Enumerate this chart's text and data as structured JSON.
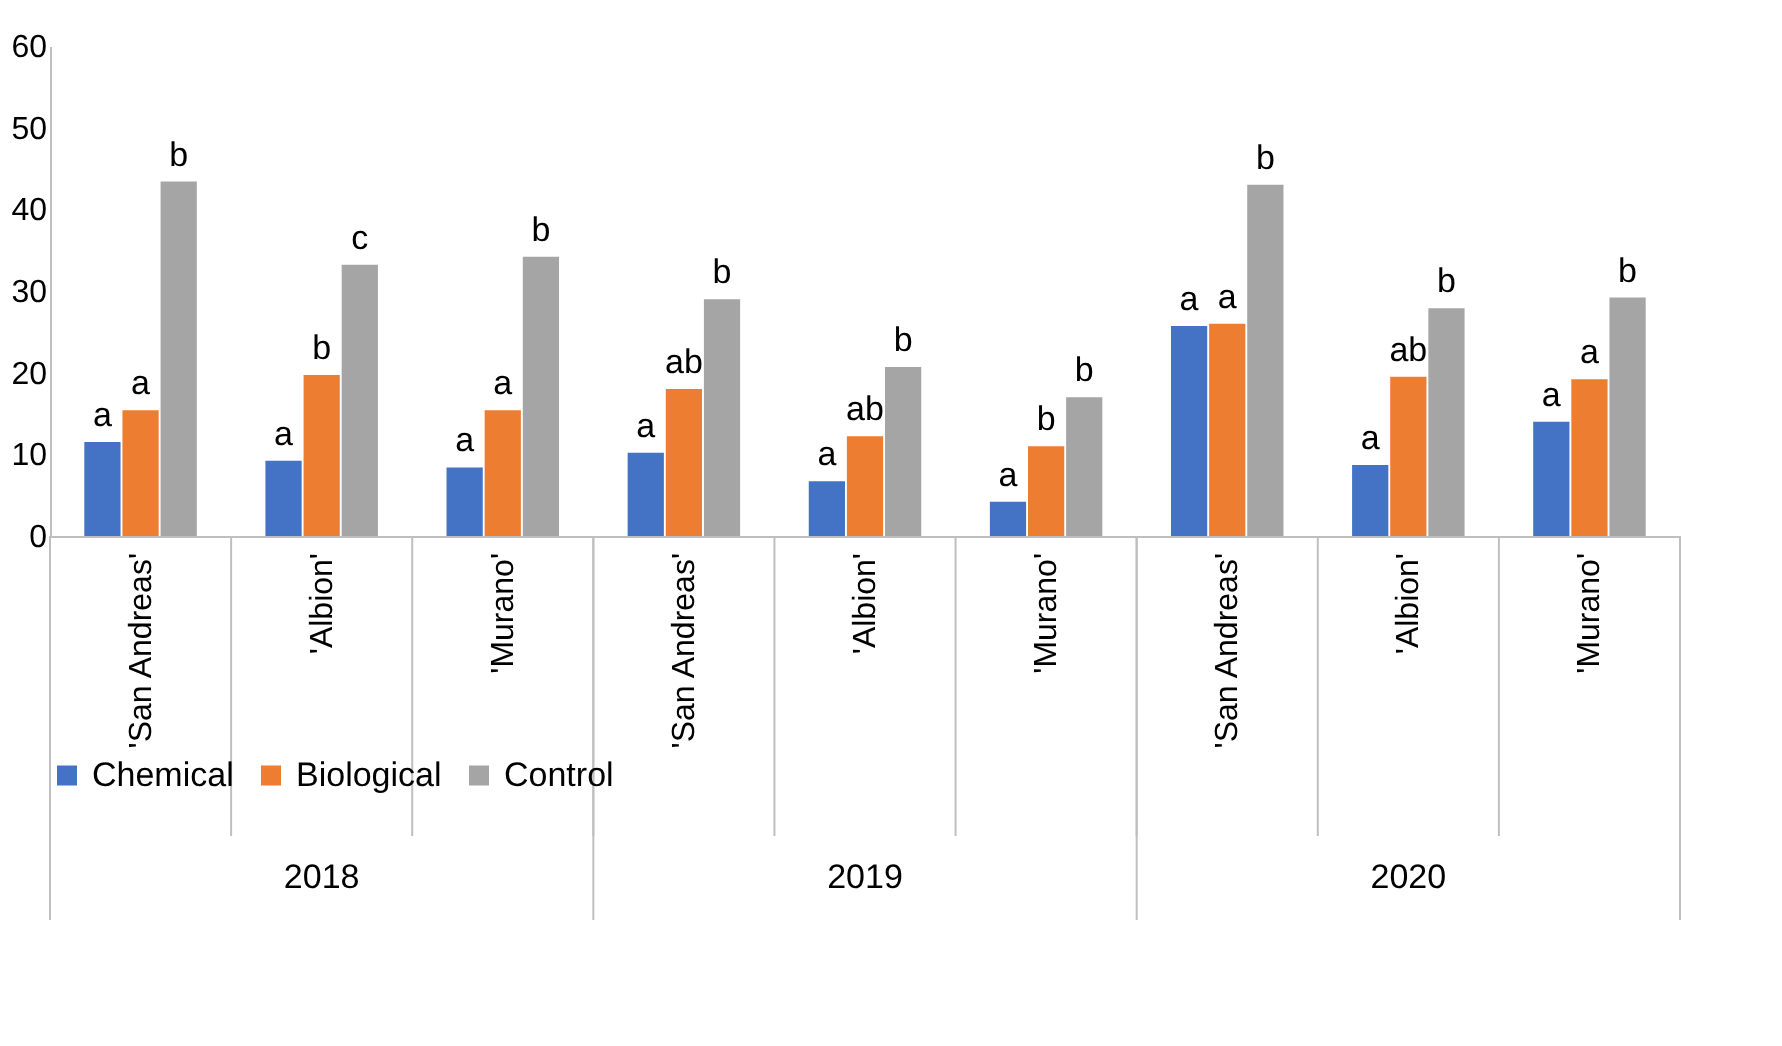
{
  "chart_data": {
    "type": "bar",
    "categories": [
      "'San Andreas'",
      "'Albion'",
      "'Murano'",
      "'San Andreas'",
      "'Albion'",
      "'Murano'",
      "'San Andreas'",
      "'Albion'",
      "'Murano'"
    ],
    "annotations": [
      "2018",
      "2019",
      "2020"
    ],
    "series": [
      {
        "name": "Chemical",
        "color": "#4472c4",
        "values": [
          11.5,
          9.2,
          8.4,
          10.2,
          6.7,
          4.2,
          25.7,
          8.7,
          14
        ],
        "value_labels": [
          "a",
          "a",
          "a",
          "a",
          "a",
          "a",
          "a",
          "a",
          "a"
        ]
      },
      {
        "name": "Biological",
        "color": "#ed7d31",
        "values": [
          15.4,
          19.7,
          15.4,
          18,
          12.2,
          11,
          26,
          19.5,
          19.2
        ],
        "value_labels": [
          "a",
          "b",
          "a",
          "ab",
          "ab",
          "b",
          "a",
          "ab",
          "a"
        ]
      },
      {
        "name": "Control",
        "color": "#a5a5a5",
        "values": [
          43.4,
          33.2,
          34.2,
          29,
          20.7,
          17,
          43,
          27.9,
          29.2
        ],
        "value_labels": [
          "b",
          "c",
          "b",
          "b",
          "b",
          "b",
          "b",
          "b",
          "b"
        ]
      }
    ],
    "ylim": [
      0,
      60
    ],
    "yticks": [
      0,
      10,
      20,
      30,
      40,
      50,
      60
    ],
    "grid": false,
    "legend": "bottom"
  }
}
